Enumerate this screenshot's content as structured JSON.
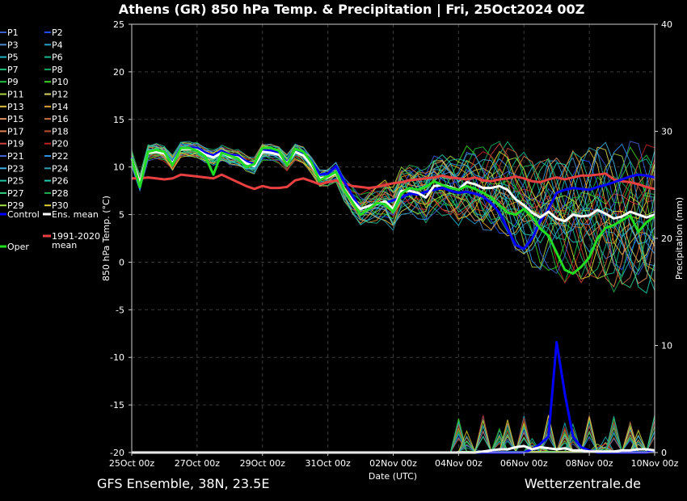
{
  "colors": {
    "background": "#000000",
    "grid": "#3a3a3a",
    "control": "#0000ff",
    "ens_mean": "#ffffff",
    "climate_mean": "#e84040",
    "oper": "#22dd22"
  },
  "header": {
    "title": "Athens  (GR)  850 hPa Temp. & Precipitation | Fri, 25Oct2024 00Z"
  },
  "footer": {
    "left": "GFS Ensemble, 38N, 23.5E",
    "right": "Wetterzentrale.de"
  },
  "legend": {
    "members": [
      {
        "label": "P1",
        "color": "#3a5ccc"
      },
      {
        "label": "P2",
        "color": "#1f4fff"
      },
      {
        "label": "P3",
        "color": "#4a8acf"
      },
      {
        "label": "P4",
        "color": "#2aa0d0"
      },
      {
        "label": "P5",
        "color": "#1fb2c2"
      },
      {
        "label": "P6",
        "color": "#16b890"
      },
      {
        "label": "P7",
        "color": "#1cc07a"
      },
      {
        "label": "P8",
        "color": "#10a860"
      },
      {
        "label": "P9",
        "color": "#22c040"
      },
      {
        "label": "P10",
        "color": "#3cd020"
      },
      {
        "label": "P11",
        "color": "#a8d040"
      },
      {
        "label": "P12",
        "color": "#d8d060"
      },
      {
        "label": "P13",
        "color": "#e0c040"
      },
      {
        "label": "P14",
        "color": "#e0a030"
      },
      {
        "label": "P15",
        "color": "#e09060"
      },
      {
        "label": "P16",
        "color": "#c87040"
      },
      {
        "label": "P17",
        "color": "#e08050"
      },
      {
        "label": "P18",
        "color": "#c05030"
      },
      {
        "label": "P19",
        "color": "#d04040"
      },
      {
        "label": "P20",
        "color": "#c02020"
      },
      {
        "label": "P21",
        "color": "#4060d0"
      },
      {
        "label": "P22",
        "color": "#3090e0"
      },
      {
        "label": "P23",
        "color": "#40b0e0"
      },
      {
        "label": "P24",
        "color": "#30a0b0"
      },
      {
        "label": "P25",
        "color": "#20c0a0"
      },
      {
        "label": "P26",
        "color": "#20d0b0"
      },
      {
        "label": "P27",
        "color": "#30d080"
      },
      {
        "label": "P28",
        "color": "#20b050"
      },
      {
        "label": "P29",
        "color": "#a0e040"
      },
      {
        "label": "P30",
        "color": "#e0d030"
      }
    ],
    "control": "Control",
    "ens_mean": "Ens. mean",
    "climate_mean": "1991-2020\nmean",
    "oper": "Oper"
  },
  "chart_data": {
    "type": "line",
    "x": [
      "25Oct 00z",
      "25Oct 06z",
      "25Oct 12z",
      "25Oct 18z",
      "26Oct 00z",
      "26Oct 06z",
      "26Oct 12z",
      "26Oct 18z",
      "27Oct 00z",
      "27Oct 06z",
      "27Oct 12z",
      "27Oct 18z",
      "28Oct 00z",
      "28Oct 06z",
      "28Oct 12z",
      "28Oct 18z",
      "29Oct 00z",
      "29Oct 06z",
      "29Oct 12z",
      "29Oct 18z",
      "30Oct 00z",
      "30Oct 06z",
      "30Oct 12z",
      "30Oct 18z",
      "31Oct 00z",
      "31Oct 06z",
      "31Oct 12z",
      "31Oct 18z",
      "01Nov 00z",
      "01Nov 06z",
      "01Nov 12z",
      "01Nov 18z",
      "02Nov 00z",
      "02Nov 06z",
      "02Nov 12z",
      "02Nov 18z",
      "03Nov 00z",
      "03Nov 06z",
      "03Nov 12z",
      "03Nov 18z",
      "04Nov 00z",
      "04Nov 06z",
      "04Nov 12z",
      "04Nov 18z",
      "05Nov 00z",
      "05Nov 06z",
      "05Nov 12z",
      "05Nov 18z",
      "06Nov 00z",
      "06Nov 06z",
      "06Nov 12z",
      "06Nov 18z",
      "07Nov 00z",
      "07Nov 06z",
      "07Nov 12z",
      "07Nov 18z",
      "08Nov 00z",
      "08Nov 06z",
      "08Nov 12z",
      "08Nov 18z",
      "09Nov 00z",
      "09Nov 06z",
      "09Nov 12z",
      "09Nov 18z",
      "10Nov 00z"
    ],
    "xticks": [
      "25Oct 00z",
      "27Oct 00z",
      "29Oct 00z",
      "31Oct 00z",
      "02Nov 00z",
      "04Nov 00z",
      "06Nov 00z",
      "08Nov 00z",
      "10Nov 00z"
    ],
    "xlabel": "Date (UTC)",
    "ylabel": "850 hPa Temp. (°C)",
    "ylim": [
      -20,
      25
    ],
    "yticks": [
      -20,
      -15,
      -10,
      -5,
      0,
      5,
      10,
      15,
      20,
      25
    ],
    "y2label": "Precipitation (mm)",
    "y2lim": [
      0,
      40
    ],
    "y2ticks": [
      0,
      10,
      20,
      30,
      40
    ],
    "grid": true,
    "legend_position": "left",
    "series": [
      {
        "name": "Control",
        "axis": "temp",
        "values": [
          11,
          8.2,
          11.5,
          11.6,
          11.4,
          10.5,
          12,
          12,
          12,
          11.5,
          11.2,
          11.7,
          11.3,
          11.2,
          10.6,
          10.3,
          11.8,
          11.7,
          11.5,
          10.5,
          11.8,
          11.5,
          10.6,
          9.2,
          9.3,
          10.1,
          8.5,
          7,
          5.6,
          5.9,
          6.1,
          6.2,
          6.5,
          6.8,
          7.2,
          7.1,
          7.4,
          7.6,
          7.8,
          7.5,
          7.3,
          7.4,
          7.2,
          6.9,
          6.2,
          5.2,
          3.5,
          1.8,
          1.4,
          2.5,
          4.3,
          5.6,
          7.3,
          7.6,
          7.8,
          7.7,
          7.6,
          7.9,
          8.1,
          8.4,
          8.7,
          9,
          9.2,
          9.1,
          8.9
        ]
      },
      {
        "name": "Ens. mean",
        "axis": "temp",
        "values": [
          10.9,
          8.3,
          11.5,
          11.6,
          11.4,
          10.4,
          11.9,
          11.9,
          11.8,
          11.3,
          11,
          11.5,
          11.1,
          11,
          10.4,
          10.1,
          11.6,
          11.5,
          11.3,
          10.4,
          11.6,
          11.2,
          10.2,
          8.8,
          8.9,
          9.4,
          7.7,
          6.5,
          5.6,
          5.9,
          6.1,
          6.4,
          5.6,
          7.5,
          7.5,
          7.3,
          6.8,
          8,
          8.1,
          7.9,
          7.6,
          8.4,
          8.2,
          7.8,
          7.8,
          8,
          7.6,
          6.6,
          6,
          5.2,
          4.7,
          5.3,
          4.6,
          4.3,
          5,
          4.8,
          4.9,
          5.5,
          5.1,
          4.6,
          4.8,
          5.3,
          5,
          4.7,
          5
        ]
      },
      {
        "name": "Oper",
        "axis": "temp",
        "values": [
          10.9,
          7.9,
          11.6,
          11.8,
          11.6,
          10.2,
          12,
          12,
          11.7,
          11.1,
          9.2,
          11.5,
          11.2,
          10.9,
          10,
          10.3,
          12,
          12,
          11.7,
          10.2,
          11.9,
          11.6,
          10.5,
          8.6,
          9,
          9.5,
          7.6,
          6.3,
          5,
          5.6,
          6.2,
          6.1,
          5.3,
          7.2,
          7.8,
          7.6,
          7.9,
          8.5,
          8.1,
          7.8,
          7.6,
          8,
          7.7,
          7.3,
          6.8,
          6,
          5.2,
          5,
          5.6,
          4.8,
          3.5,
          2.8,
          1,
          -0.8,
          -1.2,
          -0.5,
          0.5,
          2.5,
          3.6,
          3.9,
          4.4,
          4.9,
          3.2,
          4.2,
          4.8
        ]
      },
      {
        "name": "1991-2020 mean",
        "axis": "temp",
        "values": [
          8.8,
          8.8,
          8.9,
          8.8,
          8.7,
          8.8,
          9.2,
          9.1,
          9,
          8.9,
          8.8,
          9.2,
          8.8,
          8.4,
          8,
          7.7,
          8,
          7.8,
          7.8,
          7.9,
          8.6,
          8.8,
          8.5,
          8.2,
          8.4,
          8.6,
          8.3,
          8,
          7.9,
          7.8,
          7.9,
          8.1,
          8.3,
          8.4,
          8.6,
          8.7,
          8.8,
          8.9,
          9.1,
          8.9,
          8.8,
          8.7,
          8.9,
          8.6,
          8.5,
          8.7,
          8.8,
          9,
          8.8,
          8.5,
          8.4,
          8.7,
          8.9,
          8.7,
          8.9,
          9.1,
          9.1,
          9.2,
          9.3,
          8.7,
          8.5,
          8.4,
          8.2,
          7.9,
          7.7
        ]
      },
      {
        "name": "Control",
        "axis": "precip",
        "values": [
          0,
          0,
          0,
          0,
          0,
          0,
          0,
          0,
          0,
          0,
          0,
          0,
          0,
          0,
          0,
          0,
          0,
          0,
          0,
          0,
          0,
          0,
          0,
          0,
          0,
          0,
          0,
          0,
          0,
          0,
          0,
          0,
          0,
          0,
          0,
          0,
          0,
          0,
          0,
          0,
          0,
          0,
          0,
          0,
          0,
          0,
          0,
          0,
          0,
          0.3,
          0.8,
          1.5,
          10.3,
          5.5,
          1.5,
          0.5,
          0.2,
          0,
          0,
          0,
          0,
          0,
          0,
          0,
          0.2
        ]
      },
      {
        "name": "Ens. mean",
        "axis": "precip",
        "values": [
          0,
          0,
          0,
          0,
          0,
          0,
          0,
          0,
          0,
          0,
          0,
          0,
          0,
          0,
          0,
          0,
          0,
          0,
          0,
          0,
          0,
          0,
          0,
          0,
          0,
          0,
          0,
          0,
          0,
          0,
          0,
          0,
          0,
          0,
          0,
          0,
          0,
          0,
          0,
          0,
          0,
          0,
          0,
          0.1,
          0.2,
          0.3,
          0.3,
          0.5,
          0.6,
          0.3,
          0.5,
          0.4,
          0.3,
          0.4,
          0.2,
          0.2,
          0.1,
          0.1,
          0.1,
          0.1,
          0.2,
          0.2,
          0.3,
          0.3,
          0.2
        ]
      }
    ]
  }
}
